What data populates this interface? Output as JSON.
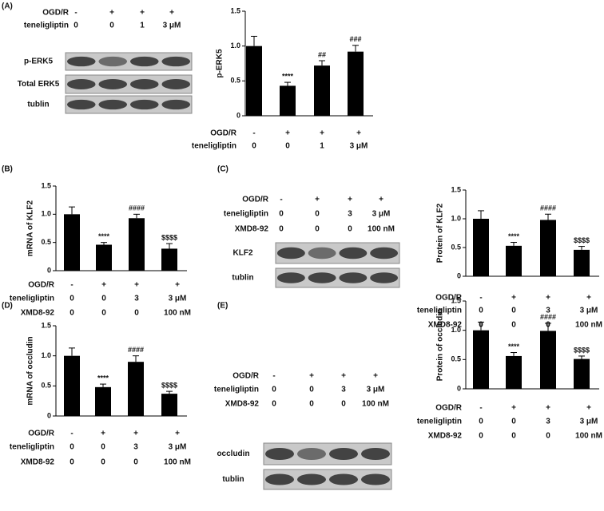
{
  "blots": [
    {
      "panel": "(A)",
      "conditions": [
        {
          "label": "OGD/R",
          "values": [
            "-",
            "+",
            "+",
            "+"
          ]
        },
        {
          "label": "teneligliptin",
          "values": [
            "0",
            "0",
            "1",
            "3 μM"
          ]
        }
      ],
      "rows": [
        "p-ERK5",
        "Total ERK5",
        "tublin"
      ]
    },
    {
      "panel": "(C)",
      "conditions": [
        {
          "label": "OGD/R",
          "values": [
            "-",
            "+",
            "+",
            "+"
          ]
        },
        {
          "label": "teneligliptin",
          "values": [
            "0",
            "0",
            "3",
            "3 μM"
          ]
        },
        {
          "label": "XMD8-92",
          "values": [
            "0",
            "0",
            "0",
            "100 nM"
          ]
        }
      ],
      "rows": [
        "KLF2",
        "tublin"
      ]
    },
    {
      "panel": "(E)",
      "conditions": [
        {
          "label": "OGD/R",
          "values": [
            "-",
            "+",
            "+",
            "+"
          ]
        },
        {
          "label": "teneligliptin",
          "values": [
            "0",
            "0",
            "3",
            "3 μM"
          ]
        },
        {
          "label": "XMD8-92",
          "values": [
            "0",
            "0",
            "0",
            "100 nM"
          ]
        }
      ],
      "rows": [
        "occludin",
        "tublin"
      ]
    }
  ],
  "chart_data": [
    {
      "type": "bar",
      "ylabel": "p-ERK5",
      "color": "#000000",
      "values": [
        1.0,
        0.43,
        0.72,
        0.92
      ],
      "errors": [
        0.14,
        0.05,
        0.07,
        0.09
      ],
      "annotations": [
        null,
        "****",
        "##",
        "###"
      ],
      "ylim": [
        0,
        1.5
      ],
      "yticks": [
        0,
        0.5,
        {
          "value": 1,
          "label": "1.0"
        },
        1.5
      ],
      "conditions": [
        {
          "label": "OGD/R",
          "values": [
            "-",
            "+",
            "+",
            "+"
          ]
        },
        {
          "label": "teneligliptin",
          "values": [
            "0",
            "0",
            "1",
            "3 μM"
          ]
        }
      ]
    },
    {
      "type": "bar",
      "panel": "(B)",
      "ylabel": "mRNA of  KLF2",
      "color": "#000000",
      "values": [
        1.0,
        0.46,
        0.93,
        0.39
      ],
      "errors": [
        0.13,
        0.04,
        0.07,
        0.09
      ],
      "annotations": [
        null,
        "****",
        "####",
        "$$$$"
      ],
      "ylim": [
        0,
        1.5
      ],
      "yticks": [
        0,
        0.5,
        {
          "value": 1,
          "label": "1.0"
        },
        1.5
      ],
      "conditions": [
        {
          "label": "OGD/R",
          "values": [
            "-",
            "+",
            "+",
            "+"
          ]
        },
        {
          "label": "teneligliptin",
          "values": [
            "0",
            "0",
            "3",
            "3 μM"
          ]
        },
        {
          "label": "XMD8-92",
          "values": [
            "0",
            "0",
            "0",
            "100 nM"
          ]
        }
      ]
    },
    {
      "type": "bar",
      "ylabel": "Protein of KLF2",
      "color": "#000000",
      "values": [
        1.0,
        0.53,
        0.98,
        0.46
      ],
      "errors": [
        0.14,
        0.06,
        0.1,
        0.06
      ],
      "annotations": [
        null,
        "****",
        "####",
        "$$$$"
      ],
      "ylim": [
        0,
        1.5
      ],
      "yticks": [
        0,
        0.5,
        {
          "value": 1,
          "label": "1.0"
        },
        1.5
      ],
      "conditions": [
        {
          "label": "OGD/R",
          "values": [
            "-",
            "+",
            "+",
            "+"
          ]
        },
        {
          "label": "teneligliptin",
          "values": [
            "0",
            "0",
            "3",
            "3 μM"
          ]
        },
        {
          "label": "XMD8-92",
          "values": [
            "0",
            "0",
            "0",
            "100 nM"
          ]
        }
      ]
    },
    {
      "type": "bar",
      "panel": "(D)",
      "ylabel": "mRNA of occludin",
      "color": "#000000",
      "values": [
        1.0,
        0.48,
        0.9,
        0.37
      ],
      "errors": [
        0.13,
        0.05,
        0.1,
        0.04
      ],
      "annotations": [
        null,
        "****",
        "####",
        "$$$$"
      ],
      "ylim": [
        0,
        1.5
      ],
      "yticks": [
        0,
        0.5,
        {
          "value": 1,
          "label": "1.0"
        },
        1.5
      ],
      "conditions": [
        {
          "label": "OGD/R",
          "values": [
            "-",
            "+",
            "+",
            "+"
          ]
        },
        {
          "label": "teneligliptin",
          "values": [
            "0",
            "0",
            "3",
            "3 μM"
          ]
        },
        {
          "label": "XMD8-92",
          "values": [
            "0",
            "0",
            "0",
            "100 nM"
          ]
        }
      ]
    },
    {
      "type": "bar",
      "ylabel": "Protein of occludin",
      "color": "#000000",
      "values": [
        1.0,
        0.56,
        0.99,
        0.51
      ],
      "errors": [
        0.14,
        0.06,
        0.13,
        0.05
      ],
      "annotations": [
        null,
        "****",
        "####",
        "$$$$"
      ],
      "ylim": [
        0,
        1.5
      ],
      "yticks": [
        0,
        0.5,
        {
          "value": 1,
          "label": "1.0"
        },
        1.5
      ],
      "conditions": [
        {
          "label": "OGD/R",
          "values": [
            "-",
            "+",
            "+",
            "+"
          ]
        },
        {
          "label": "teneligliptin",
          "values": [
            "0",
            "0",
            "3",
            "3 μM"
          ]
        },
        {
          "label": "XMD8-92",
          "values": [
            "0",
            "0",
            "0",
            "100 nM"
          ]
        }
      ]
    }
  ]
}
